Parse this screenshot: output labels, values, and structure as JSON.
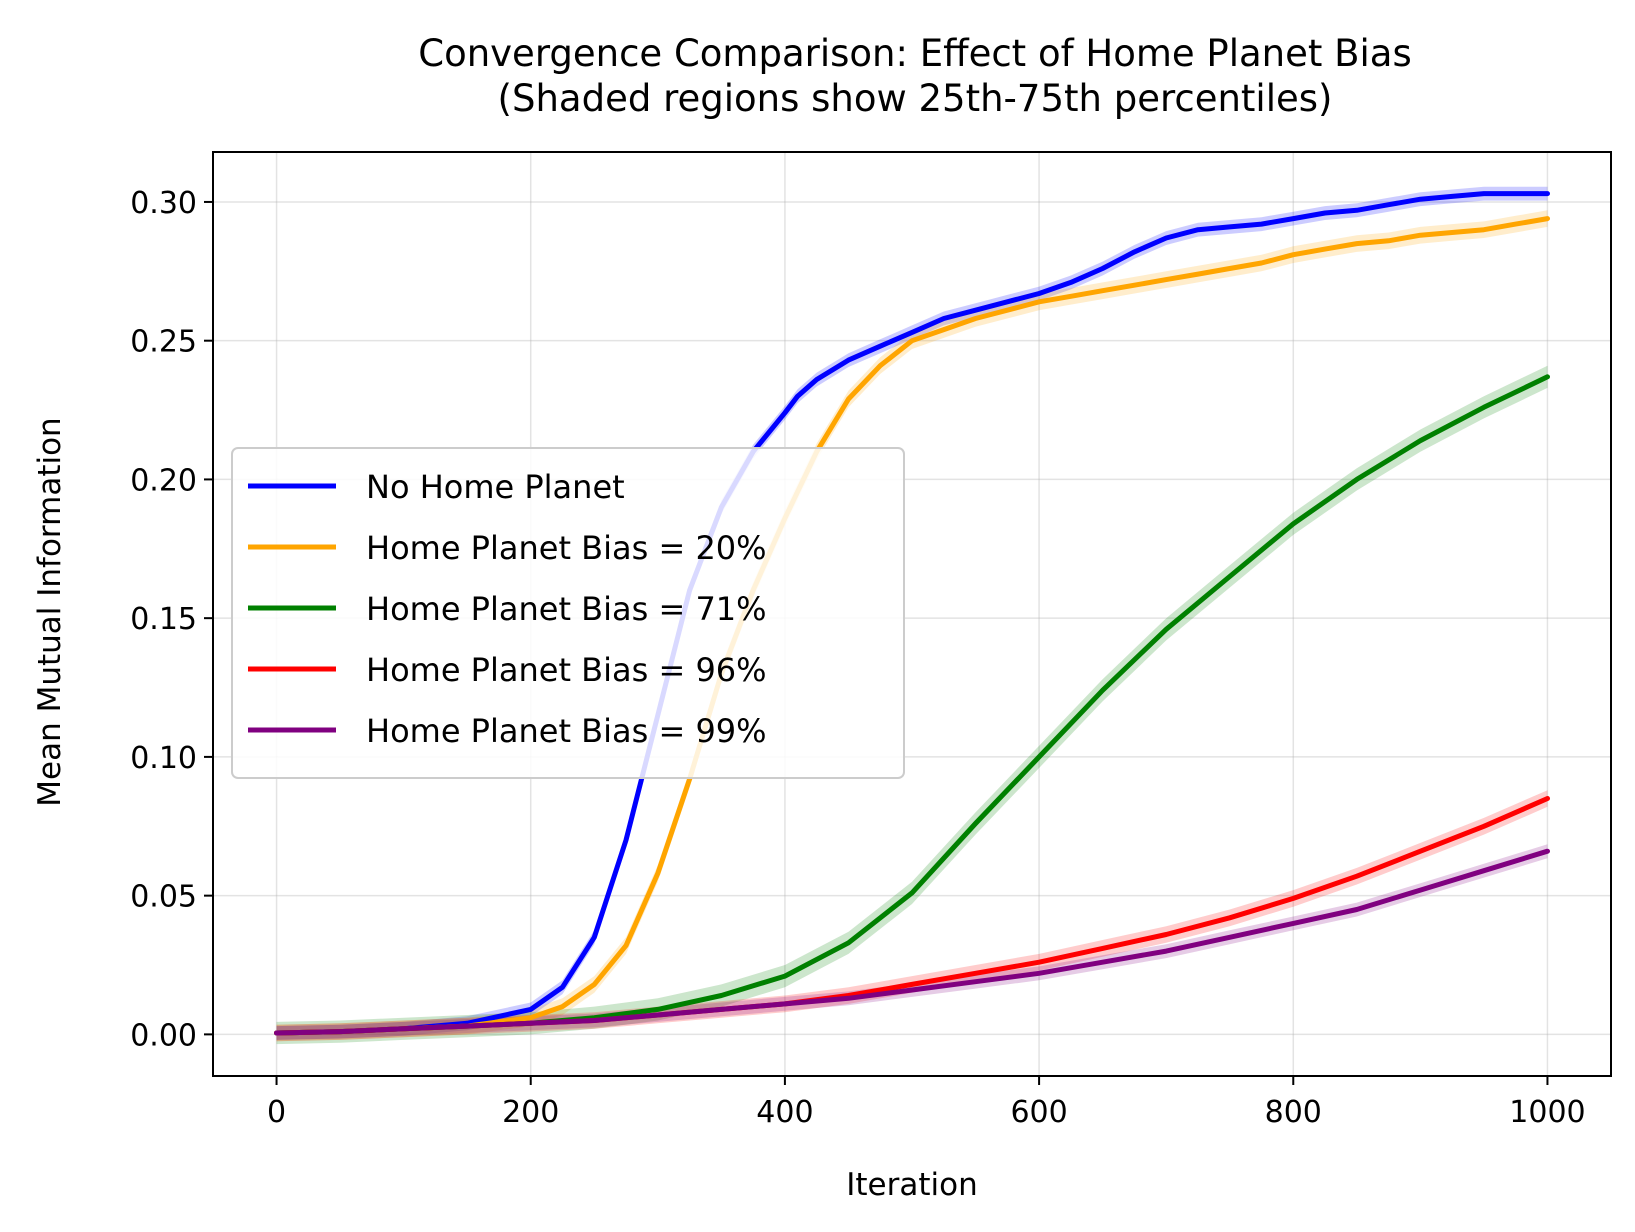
{
  "chart_data": {
    "type": "line",
    "title": "Convergence Comparison: Effect of Home Planet Bias",
    "subtitle": "(Shaded regions show 25th-75th percentiles)",
    "xlabel": "Iteration",
    "ylabel": "Mean Mutual Information",
    "xlim": [
      -50,
      1050
    ],
    "ylim": [
      -0.015,
      0.318
    ],
    "xticks": [
      0,
      200,
      400,
      600,
      800,
      1000
    ],
    "xtick_labels": [
      "0",
      "200",
      "400",
      "600",
      "800",
      "1000"
    ],
    "yticks": [
      0.0,
      0.05,
      0.1,
      0.15,
      0.2,
      0.25,
      0.3
    ],
    "ytick_labels": [
      "0.00",
      "0.05",
      "0.10",
      "0.15",
      "0.20",
      "0.25",
      "0.30"
    ],
    "grid": true,
    "legend_position": "center-left",
    "series": [
      {
        "name": "No Home Planet",
        "color": "#0000ff",
        "x": [
          0,
          50,
          100,
          150,
          200,
          225,
          250,
          275,
          300,
          325,
          350,
          375,
          400,
          410,
          425,
          450,
          475,
          500,
          525,
          550,
          575,
          600,
          625,
          650,
          675,
          700,
          725,
          750,
          775,
          800,
          825,
          850,
          875,
          900,
          925,
          950,
          975,
          1000
        ],
        "y": [
          0.0005,
          0.001,
          0.002,
          0.004,
          0.009,
          0.017,
          0.035,
          0.07,
          0.115,
          0.16,
          0.19,
          0.21,
          0.224,
          0.23,
          0.236,
          0.243,
          0.248,
          0.253,
          0.258,
          0.261,
          0.264,
          0.267,
          0.271,
          0.276,
          0.282,
          0.287,
          0.29,
          0.291,
          0.292,
          0.294,
          0.296,
          0.297,
          0.299,
          0.301,
          0.302,
          0.303,
          0.303,
          0.303
        ],
        "band": 0.0025
      },
      {
        "name": "Home Planet Bias = 20%",
        "color": "#ffa500",
        "x": [
          0,
          50,
          100,
          150,
          200,
          225,
          250,
          275,
          300,
          325,
          350,
          375,
          400,
          425,
          450,
          475,
          500,
          525,
          550,
          575,
          600,
          625,
          650,
          675,
          700,
          725,
          750,
          775,
          800,
          825,
          850,
          875,
          900,
          925,
          950,
          975,
          1000
        ],
        "y": [
          0.0005,
          0.001,
          0.002,
          0.003,
          0.006,
          0.01,
          0.018,
          0.032,
          0.058,
          0.092,
          0.13,
          0.16,
          0.186,
          0.21,
          0.229,
          0.241,
          0.25,
          0.254,
          0.258,
          0.261,
          0.264,
          0.266,
          0.268,
          0.27,
          0.272,
          0.274,
          0.276,
          0.278,
          0.281,
          0.283,
          0.285,
          0.286,
          0.288,
          0.289,
          0.29,
          0.292,
          0.294
        ],
        "band": 0.003
      },
      {
        "name": "Home Planet Bias = 71%",
        "color": "#008000",
        "x": [
          0,
          50,
          100,
          150,
          200,
          250,
          300,
          350,
          400,
          450,
          500,
          550,
          600,
          650,
          700,
          750,
          800,
          850,
          900,
          950,
          1000
        ],
        "y": [
          0.0005,
          0.001,
          0.002,
          0.003,
          0.004,
          0.006,
          0.009,
          0.014,
          0.021,
          0.033,
          0.051,
          0.076,
          0.1,
          0.124,
          0.146,
          0.165,
          0.184,
          0.2,
          0.214,
          0.226,
          0.237
        ],
        "band": 0.004
      },
      {
        "name": "Home Planet Bias = 96%",
        "color": "#ff0000",
        "x": [
          0,
          50,
          100,
          150,
          200,
          250,
          300,
          350,
          400,
          450,
          500,
          550,
          600,
          650,
          700,
          750,
          800,
          850,
          900,
          950,
          1000
        ],
        "y": [
          0.0005,
          0.001,
          0.002,
          0.003,
          0.004,
          0.005,
          0.007,
          0.009,
          0.011,
          0.014,
          0.018,
          0.022,
          0.026,
          0.031,
          0.036,
          0.042,
          0.049,
          0.057,
          0.066,
          0.075,
          0.085
        ],
        "band": 0.003
      },
      {
        "name": "Home Planet Bias = 99%",
        "color": "#800080",
        "x": [
          0,
          50,
          100,
          150,
          200,
          250,
          300,
          350,
          400,
          450,
          500,
          550,
          600,
          650,
          700,
          750,
          800,
          850,
          900,
          950,
          1000
        ],
        "y": [
          0.0005,
          0.001,
          0.002,
          0.003,
          0.004,
          0.005,
          0.007,
          0.009,
          0.011,
          0.013,
          0.016,
          0.019,
          0.022,
          0.026,
          0.03,
          0.035,
          0.04,
          0.045,
          0.052,
          0.059,
          0.066
        ],
        "band": 0.0025
      }
    ]
  }
}
